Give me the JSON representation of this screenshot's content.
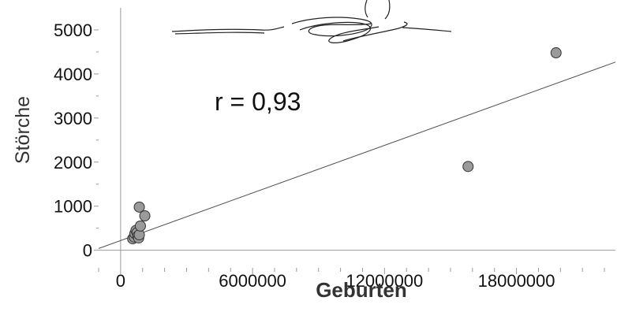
{
  "chart_data": {
    "type": "scatter",
    "title": "",
    "xlabel": "Geburten",
    "ylabel": "Störche",
    "xlim": [
      -1000000,
      22500000
    ],
    "ylim": [
      -400,
      5500
    ],
    "x_ticks": [
      {
        "value": 0,
        "label": "0"
      },
      {
        "value": 6000000,
        "label": "6000000"
      },
      {
        "value": 12000000,
        "label": "12000000"
      },
      {
        "value": 18000000,
        "label": "18000000"
      }
    ],
    "y_ticks": [
      {
        "value": 0,
        "label": "0"
      },
      {
        "value": 1000,
        "label": "1000"
      },
      {
        "value": 2000,
        "label": "2000"
      },
      {
        "value": 3000,
        "label": "3000"
      },
      {
        "value": 4000,
        "label": "4000"
      },
      {
        "value": 5000,
        "label": "5000"
      }
    ],
    "grid": false,
    "points": [
      {
        "x": 550000,
        "y": 260
      },
      {
        "x": 620000,
        "y": 300
      },
      {
        "x": 650000,
        "y": 380
      },
      {
        "x": 700000,
        "y": 450
      },
      {
        "x": 750000,
        "y": 400
      },
      {
        "x": 780000,
        "y": 320
      },
      {
        "x": 820000,
        "y": 280
      },
      {
        "x": 850000,
        "y": 350
      },
      {
        "x": 900000,
        "y": 550
      },
      {
        "x": 850000,
        "y": 980
      },
      {
        "x": 1100000,
        "y": 780
      },
      {
        "x": 15800000,
        "y": 1900
      },
      {
        "x": 19800000,
        "y": 4480
      }
    ],
    "regression": {
      "intercept": 220,
      "slope": 0.00018
    },
    "annotation": "r = 0,93",
    "colors": {
      "point_fill": "#9a9a9a",
      "point_stroke": "#333333",
      "line": "#555555",
      "axis": "#999999"
    }
  }
}
